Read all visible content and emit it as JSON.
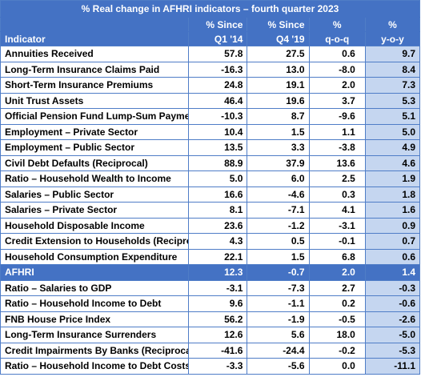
{
  "title": "% Real change in AFHRI indicators – fourth quarter 2023",
  "headers": {
    "indicator": "Indicator",
    "since_q1_top": "% Since",
    "since_q1_bottom": "Q1 '14",
    "since_q4_top": "% Since",
    "since_q4_bottom": "Q4 '19",
    "qoq_top": "%",
    "qoq_bottom": "q-o-q",
    "yoy_top": "%",
    "yoy_bottom": "y-o-y"
  },
  "rows_top": [
    {
      "label": "Annuities Received",
      "q1_14": "57.8",
      "q4_19": "27.5",
      "qoq": "0.6",
      "yoy": "9.7"
    },
    {
      "label": "Long-Term Insurance Claims Paid",
      "q1_14": "-16.3",
      "q4_19": "13.0",
      "qoq": "-8.0",
      "yoy": "8.4"
    },
    {
      "label": "Short-Term Insurance Premiums",
      "q1_14": "24.8",
      "q4_19": "19.1",
      "qoq": "2.0",
      "yoy": "7.3"
    },
    {
      "label": "Unit Trust Assets",
      "q1_14": "46.4",
      "q4_19": "19.6",
      "qoq": "3.7",
      "yoy": "5.3"
    },
    {
      "label": "Official Pension Fund Lump-Sum Payments",
      "q1_14": "-10.3",
      "q4_19": "8.7",
      "qoq": "-9.6",
      "yoy": "5.1"
    },
    {
      "label": "Employment – Private Sector",
      "q1_14": "10.4",
      "q4_19": "1.5",
      "qoq": "1.1",
      "yoy": "5.0"
    },
    {
      "label": "Employment – Public Sector",
      "q1_14": "13.5",
      "q4_19": "3.3",
      "qoq": "-3.8",
      "yoy": "4.9"
    },
    {
      "label": "Civil Debt Defaults (Reciprocal)",
      "q1_14": "88.9",
      "q4_19": "37.9",
      "qoq": "13.6",
      "yoy": "4.6"
    },
    {
      "label": "Ratio – Household Wealth to Income",
      "q1_14": "5.0",
      "q4_19": "6.0",
      "qoq": "2.5",
      "yoy": "1.9"
    },
    {
      "label": "Salaries – Public Sector",
      "q1_14": "16.6",
      "q4_19": "-4.6",
      "qoq": "0.3",
      "yoy": "1.8"
    },
    {
      "label": "Salaries – Private Sector",
      "q1_14": "8.1",
      "q4_19": "-7.1",
      "qoq": "4.1",
      "yoy": "1.6"
    },
    {
      "label": "Household Disposable Income",
      "q1_14": "23.6",
      "q4_19": "-1.2",
      "qoq": "-3.1",
      "yoy": "0.9"
    },
    {
      "label": "Credit Extension to Households (Reciprocal)",
      "q1_14": "4.3",
      "q4_19": "0.5",
      "qoq": "-0.1",
      "yoy": "0.7"
    },
    {
      "label": "Household Consumption Expenditure",
      "q1_14": "22.1",
      "q4_19": "1.5",
      "qoq": "6.8",
      "yoy": "0.6"
    }
  ],
  "afhri": {
    "label": "AFHRI",
    "q1_14": "12.3",
    "q4_19": "-0.7",
    "qoq": "2.0",
    "yoy": "1.4"
  },
  "rows_bottom": [
    {
      "label": "Ratio – Salaries to GDP",
      "q1_14": "-3.1",
      "q4_19": "-7.3",
      "qoq": "2.7",
      "yoy": "-0.3"
    },
    {
      "label": "Ratio – Household Income to Debt",
      "q1_14": "9.6",
      "q4_19": "-1.1",
      "qoq": "0.2",
      "yoy": "-0.6"
    },
    {
      "label": "FNB House Price Index",
      "q1_14": "56.2",
      "q4_19": "-1.9",
      "qoq": "-0.5",
      "yoy": "-2.6"
    },
    {
      "label": "Long-Term Insurance Surrenders",
      "q1_14": "12.6",
      "q4_19": "5.6",
      "qoq": "18.0",
      "yoy": "-5.0"
    },
    {
      "label": "Credit Impairments By Banks (Reciprocal)",
      "q1_14": "-41.6",
      "q4_19": "-24.4",
      "qoq": "-0.2",
      "yoy": "-5.3"
    },
    {
      "label": "Ratio – Household Income to Debt Costs",
      "q1_14": "-3.3",
      "q4_19": "-5.6",
      "qoq": "0.0",
      "yoy": "-11.1"
    }
  ],
  "colors": {
    "header_blue": "#4472c4",
    "yoy_shade": "#c5d6f0",
    "border": "#4f7dc7"
  }
}
